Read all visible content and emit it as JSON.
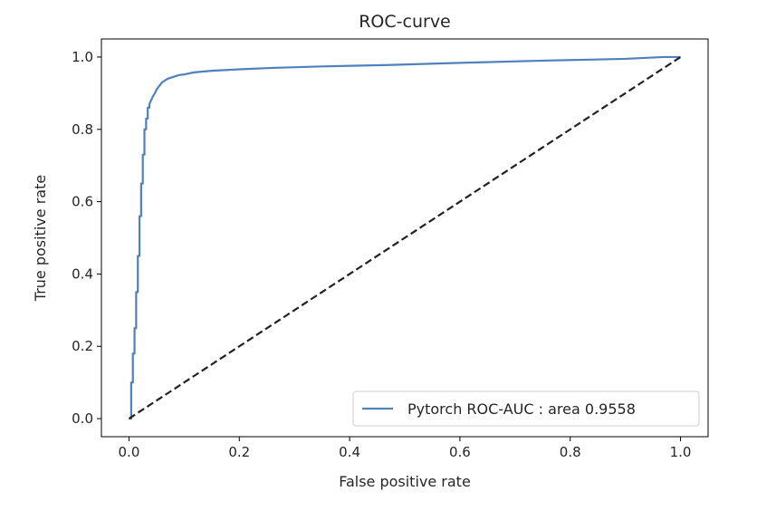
{
  "chart_data": {
    "type": "line",
    "title": "ROC-curve",
    "xlabel": "False positive rate",
    "ylabel": "True positive rate",
    "xlim": [
      -0.05,
      1.05
    ],
    "ylim": [
      -0.05,
      1.05
    ],
    "xticks": [
      0.0,
      0.2,
      0.4,
      0.6,
      0.8,
      1.0
    ],
    "yticks": [
      0.0,
      0.2,
      0.4,
      0.6,
      0.8,
      1.0
    ],
    "xtick_labels": [
      "0.0",
      "0.2",
      "0.4",
      "0.6",
      "0.8",
      "1.0"
    ],
    "ytick_labels": [
      "0.0",
      "0.2",
      "0.4",
      "0.6",
      "0.8",
      "1.0"
    ],
    "grid": false,
    "legend": {
      "position": "lower-right"
    },
    "series": [
      {
        "name": "Pytorch ROC-AUC : area 0.9558",
        "color": "#4f81bd",
        "style": "solid",
        "x": [
          0.0,
          0.004,
          0.004,
          0.007,
          0.007,
          0.01,
          0.01,
          0.013,
          0.013,
          0.016,
          0.016,
          0.019,
          0.019,
          0.022,
          0.022,
          0.025,
          0.025,
          0.028,
          0.028,
          0.031,
          0.031,
          0.034,
          0.034,
          0.037,
          0.037,
          0.04,
          0.043,
          0.047,
          0.05,
          0.055,
          0.06,
          0.07,
          0.08,
          0.09,
          0.1,
          0.12,
          0.15,
          0.2,
          0.26,
          0.35,
          0.47,
          0.6,
          0.75,
          0.9,
          0.97,
          1.0
        ],
        "y": [
          0.0,
          0.0,
          0.1,
          0.1,
          0.18,
          0.18,
          0.25,
          0.25,
          0.35,
          0.35,
          0.45,
          0.45,
          0.56,
          0.56,
          0.65,
          0.65,
          0.73,
          0.73,
          0.8,
          0.8,
          0.83,
          0.83,
          0.86,
          0.86,
          0.87,
          0.88,
          0.89,
          0.9,
          0.91,
          0.92,
          0.93,
          0.94,
          0.945,
          0.95,
          0.952,
          0.958,
          0.962,
          0.966,
          0.97,
          0.974,
          0.978,
          0.984,
          0.99,
          0.995,
          1.0,
          1.0
        ]
      },
      {
        "name": "",
        "color": "#222222",
        "style": "dashed",
        "x": [
          0.0,
          1.0
        ],
        "y": [
          0.0,
          1.0
        ]
      }
    ]
  }
}
